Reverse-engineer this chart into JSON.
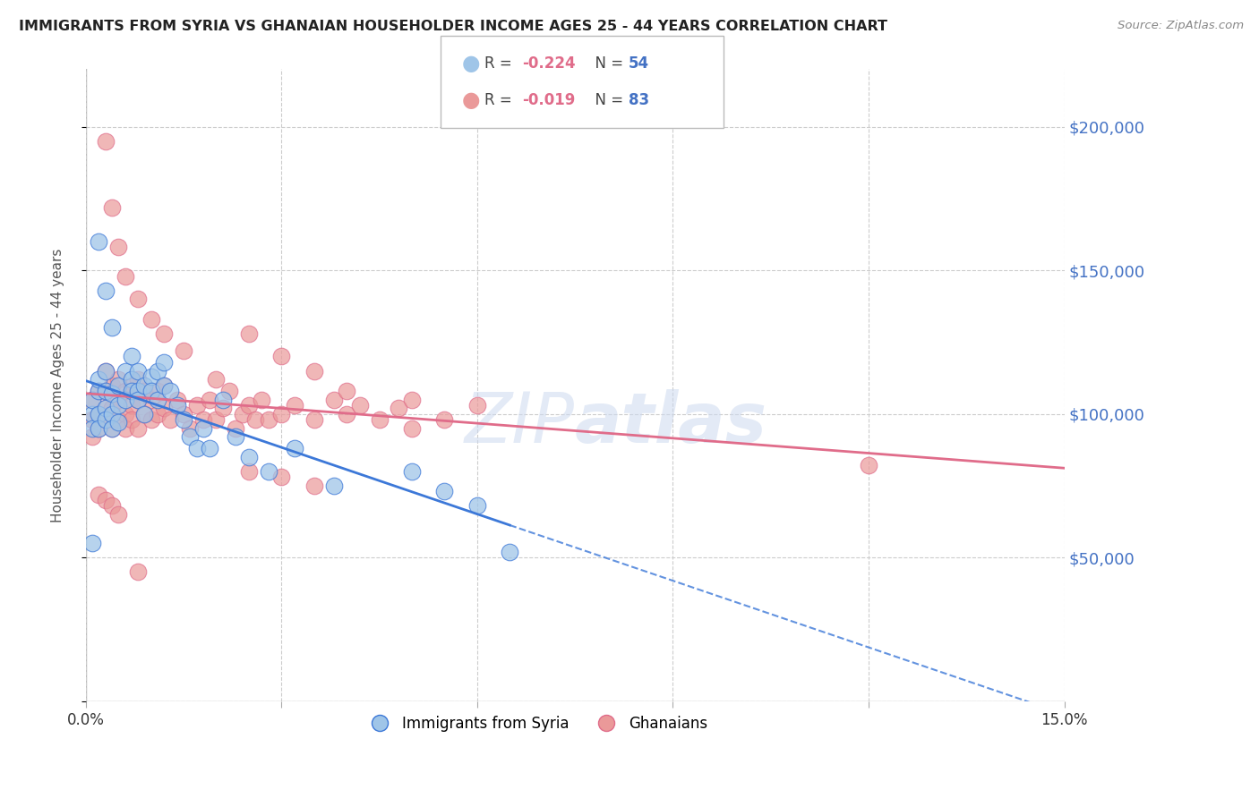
{
  "title": "IMMIGRANTS FROM SYRIA VS GHANAIAN HOUSEHOLDER INCOME AGES 25 - 44 YEARS CORRELATION CHART",
  "source": "Source: ZipAtlas.com",
  "ylabel": "Householder Income Ages 25 - 44 years",
  "xlim": [
    0.0,
    0.15
  ],
  "ylim": [
    0,
    220000
  ],
  "yticks": [
    0,
    50000,
    100000,
    150000,
    200000
  ],
  "ytick_labels": [
    "",
    "$50,000",
    "$100,000",
    "$150,000",
    "$200,000"
  ],
  "xticks": [
    0.0,
    0.03,
    0.06,
    0.09,
    0.12,
    0.15
  ],
  "legend_blue_label": "Immigrants from Syria",
  "legend_pink_label": "Ghanaians",
  "R_blue": -0.224,
  "N_blue": 54,
  "R_pink": -0.019,
  "N_pink": 83,
  "color_blue": "#9fc5e8",
  "color_pink": "#ea9999",
  "color_blue_line": "#3c78d8",
  "color_pink_line": "#e06c8a",
  "color_ytick": "#4472c4",
  "background": "#ffffff",
  "blue_x": [
    0.001,
    0.001,
    0.001,
    0.002,
    0.002,
    0.002,
    0.002,
    0.003,
    0.003,
    0.003,
    0.003,
    0.004,
    0.004,
    0.004,
    0.005,
    0.005,
    0.005,
    0.006,
    0.006,
    0.007,
    0.007,
    0.007,
    0.008,
    0.008,
    0.008,
    0.009,
    0.009,
    0.01,
    0.01,
    0.011,
    0.011,
    0.012,
    0.012,
    0.013,
    0.014,
    0.015,
    0.016,
    0.017,
    0.018,
    0.019,
    0.021,
    0.023,
    0.025,
    0.028,
    0.032,
    0.038,
    0.05,
    0.055,
    0.06,
    0.065,
    0.002,
    0.003,
    0.004,
    0.001
  ],
  "blue_y": [
    100000,
    105000,
    95000,
    108000,
    100000,
    112000,
    95000,
    102000,
    108000,
    98000,
    115000,
    100000,
    107000,
    95000,
    110000,
    103000,
    97000,
    115000,
    105000,
    112000,
    108000,
    120000,
    108000,
    115000,
    105000,
    110000,
    100000,
    113000,
    108000,
    115000,
    105000,
    110000,
    118000,
    108000,
    103000,
    98000,
    92000,
    88000,
    95000,
    88000,
    105000,
    92000,
    85000,
    80000,
    88000,
    75000,
    80000,
    73000,
    68000,
    52000,
    160000,
    143000,
    130000,
    55000
  ],
  "pink_x": [
    0.001,
    0.001,
    0.001,
    0.002,
    0.002,
    0.002,
    0.003,
    0.003,
    0.003,
    0.003,
    0.004,
    0.004,
    0.004,
    0.005,
    0.005,
    0.005,
    0.006,
    0.006,
    0.006,
    0.007,
    0.007,
    0.007,
    0.008,
    0.008,
    0.008,
    0.009,
    0.009,
    0.01,
    0.01,
    0.011,
    0.011,
    0.012,
    0.012,
    0.013,
    0.014,
    0.015,
    0.016,
    0.017,
    0.018,
    0.019,
    0.02,
    0.021,
    0.022,
    0.023,
    0.024,
    0.025,
    0.026,
    0.027,
    0.028,
    0.03,
    0.032,
    0.035,
    0.038,
    0.04,
    0.042,
    0.045,
    0.048,
    0.05,
    0.055,
    0.06,
    0.003,
    0.004,
    0.005,
    0.006,
    0.008,
    0.01,
    0.012,
    0.015,
    0.02,
    0.025,
    0.03,
    0.035,
    0.04,
    0.05,
    0.12,
    0.025,
    0.03,
    0.035,
    0.002,
    0.003,
    0.004,
    0.005,
    0.008
  ],
  "pink_y": [
    98000,
    105000,
    92000,
    100000,
    108000,
    95000,
    102000,
    98000,
    108000,
    115000,
    95000,
    102000,
    110000,
    98000,
    105000,
    112000,
    100000,
    108000,
    95000,
    103000,
    110000,
    98000,
    105000,
    112000,
    95000,
    100000,
    108000,
    98000,
    105000,
    100000,
    108000,
    102000,
    110000,
    98000,
    105000,
    100000,
    95000,
    103000,
    98000,
    105000,
    98000,
    102000,
    108000,
    95000,
    100000,
    103000,
    98000,
    105000,
    98000,
    100000,
    103000,
    98000,
    105000,
    100000,
    103000,
    98000,
    102000,
    105000,
    98000,
    103000,
    195000,
    172000,
    158000,
    148000,
    140000,
    133000,
    128000,
    122000,
    112000,
    128000,
    120000,
    115000,
    108000,
    95000,
    82000,
    80000,
    78000,
    75000,
    72000,
    70000,
    68000,
    65000,
    45000
  ]
}
